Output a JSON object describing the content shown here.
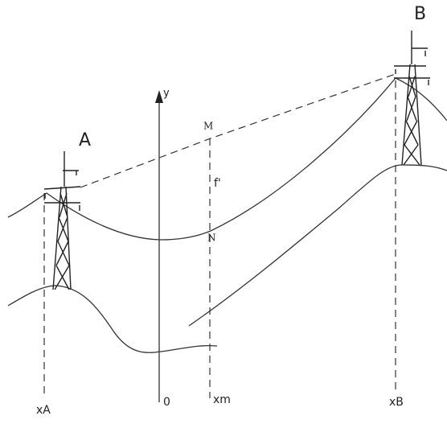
{
  "labels": {
    "tower_a": "A",
    "tower_b": "B",
    "y_axis": "y",
    "point_m": "M",
    "sag": "f'",
    "point_n": "N",
    "x_a": "xA",
    "origin": "0",
    "x_m": "xm",
    "x_b": "xB"
  }
}
